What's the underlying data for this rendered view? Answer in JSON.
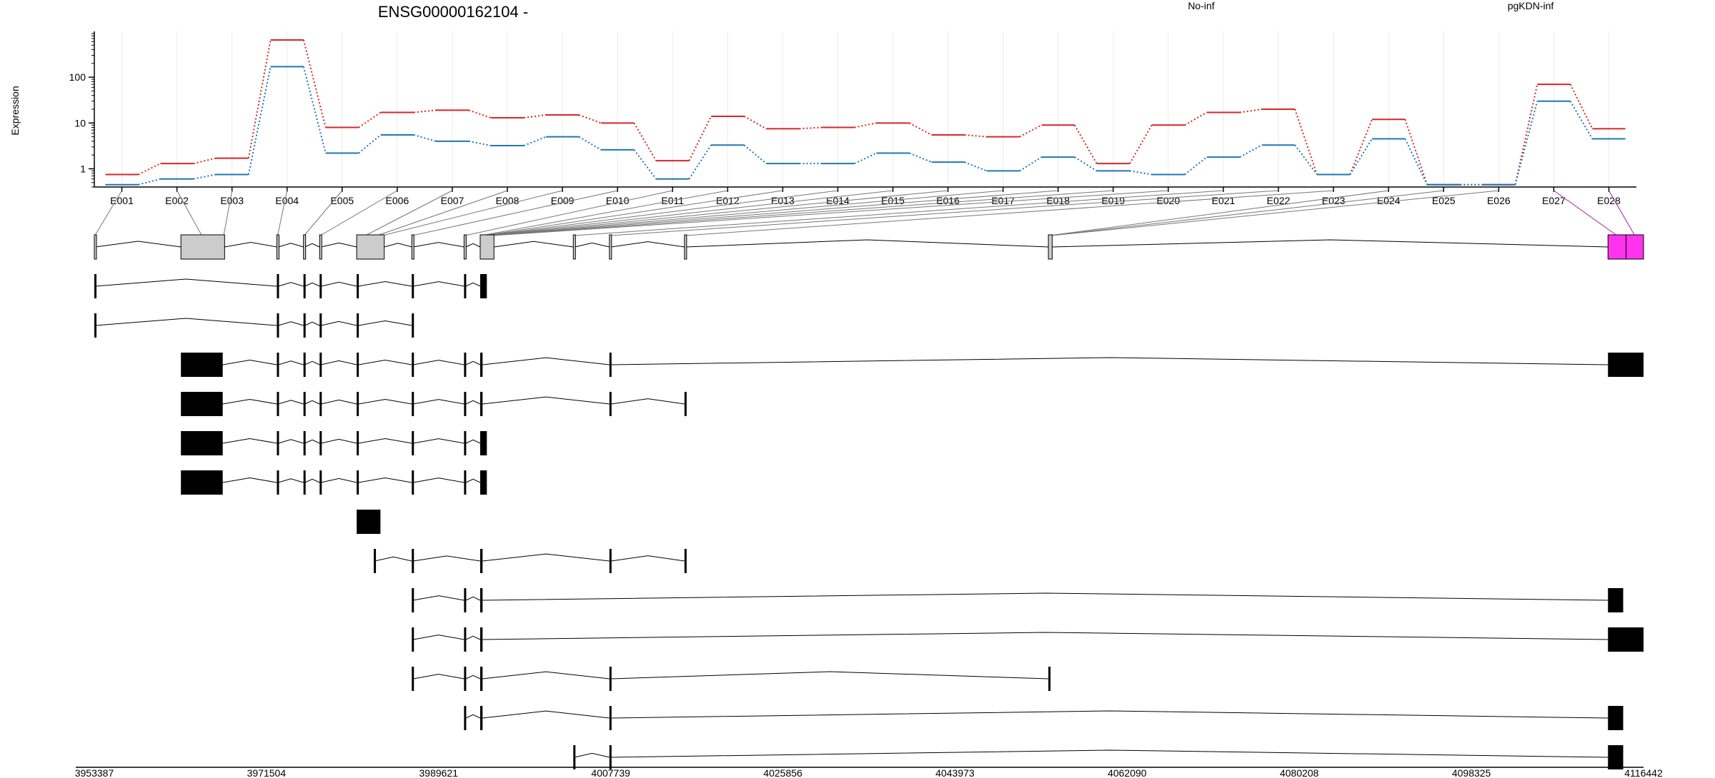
{
  "title": "ENSG00000162104 -",
  "ylabel": "Expression",
  "legend": [
    {
      "name": "No-inf",
      "color": "#d62728"
    },
    {
      "name": "pgKDN-inf",
      "color": "#1f77b4"
    }
  ],
  "chart_data": {
    "type": "line",
    "scale": "log",
    "grid": true,
    "ylim": [
      0.4,
      1000
    ],
    "yticks": [
      1,
      10,
      100
    ],
    "ytick_labels": [
      "1",
      "10",
      "100"
    ],
    "categories": [
      "E001",
      "E002",
      "E003",
      "E004",
      "E005",
      "E006",
      "E007",
      "E008",
      "E009",
      "E010",
      "E011",
      "E012",
      "E013",
      "E014",
      "E015",
      "E016",
      "E017",
      "E018",
      "E019",
      "E020",
      "E021",
      "E022",
      "E023",
      "E024",
      "E025",
      "E026",
      "E027",
      "E028"
    ],
    "series": [
      {
        "name": "No-inf",
        "values": [
          0.75,
          1.3,
          1.7,
          650,
          8,
          17,
          19,
          13,
          15,
          10,
          1.5,
          14,
          7.5,
          8,
          10,
          5.5,
          5,
          9,
          1.3,
          9,
          17,
          20,
          0.75,
          12,
          0.45,
          0.45,
          70,
          7.5
        ]
      },
      {
        "name": "pgKDN-inf",
        "values": [
          0.45,
          0.6,
          0.75,
          170,
          2.2,
          5.5,
          4,
          3.2,
          5,
          2.6,
          0.6,
          3.3,
          1.3,
          1.3,
          2.2,
          1.4,
          0.9,
          1.8,
          0.9,
          0.75,
          1.8,
          3.3,
          0.75,
          4.5,
          0.45,
          0.45,
          30,
          4.5
        ]
      }
    ]
  },
  "genomic_axis": {
    "range": [
      3953387,
      4116442
    ],
    "tick_values": [
      3953387,
      3971504,
      3989621,
      4007739,
      4025856,
      4043973,
      4062090,
      4080208,
      4098325,
      4116442
    ],
    "tick_labels": [
      "3953387",
      "3971504",
      "3989621",
      "4007739",
      "4025856",
      "4043973",
      "4062090",
      "4080208",
      "4098325",
      "4116442"
    ]
  },
  "exons": [
    {
      "id": "E001",
      "start": 3953387,
      "end": 3953500
    },
    {
      "id": "E002",
      "start": 3962500,
      "end": 3966900
    },
    {
      "id": "E003",
      "start": 3966900,
      "end": 3967100
    },
    {
      "id": "E004",
      "start": 3972600,
      "end": 3972750
    },
    {
      "id": "E005",
      "start": 3975400,
      "end": 3975550
    },
    {
      "id": "E006",
      "start": 3977100,
      "end": 3977250
    },
    {
      "id": "E007",
      "start": 3981000,
      "end": 3982800
    },
    {
      "id": "E008",
      "start": 3982800,
      "end": 3983500
    },
    {
      "id": "E009",
      "start": 3983500,
      "end": 3983900
    },
    {
      "id": "E010",
      "start": 3986800,
      "end": 3986950
    },
    {
      "id": "E011",
      "start": 3992300,
      "end": 3992500
    },
    {
      "id": "E012",
      "start": 3994000,
      "end": 3994250
    },
    {
      "id": "E013",
      "start": 3994250,
      "end": 3994400
    },
    {
      "id": "E014",
      "start": 3994400,
      "end": 3994550
    },
    {
      "id": "E015",
      "start": 3994550,
      "end": 3994700
    },
    {
      "id": "E016",
      "start": 3994700,
      "end": 3994850
    },
    {
      "id": "E017",
      "start": 3994850,
      "end": 3995000
    },
    {
      "id": "E018",
      "start": 3995000,
      "end": 3995150
    },
    {
      "id": "E019",
      "start": 3995150,
      "end": 3995300
    },
    {
      "id": "E020",
      "start": 3995300,
      "end": 3995450
    },
    {
      "id": "E021",
      "start": 4003800,
      "end": 4003950
    },
    {
      "id": "E022",
      "start": 4007600,
      "end": 4007800
    },
    {
      "id": "E023",
      "start": 4015500,
      "end": 4015650
    },
    {
      "id": "E024",
      "start": 4053800,
      "end": 4054000
    },
    {
      "id": "E025",
      "start": 4054000,
      "end": 4054100
    },
    {
      "id": "E026",
      "start": 4054100,
      "end": 4054200
    },
    {
      "id": "E027",
      "start": 4112700,
      "end": 4114600
    },
    {
      "id": "E028",
      "start": 4114600,
      "end": 4116442
    }
  ],
  "highlight_color": "#ff33ee",
  "transcripts": [
    {
      "exons": [
        [
          3953387,
          3953500
        ],
        [
          3962500,
          3967100
        ],
        [
          3972600,
          3972750
        ],
        [
          3975400,
          3975550
        ],
        [
          3977100,
          3977250
        ],
        [
          3981000,
          3983900
        ],
        [
          3986800,
          3986950
        ],
        [
          3992300,
          3992500
        ],
        [
          3994000,
          3995450
        ],
        [
          4003800,
          4003950
        ],
        [
          4007600,
          4007800
        ],
        [
          4015500,
          4015650
        ],
        [
          4053800,
          4054200
        ],
        [
          4112700,
          4114600
        ],
        [
          4114600,
          4116442
        ]
      ],
      "feature": true
    },
    {
      "exons": [
        [
          3953387,
          3953500
        ],
        [
          3972600,
          3972750
        ],
        [
          3975400,
          3975550
        ],
        [
          3977100,
          3977250
        ],
        [
          3981000,
          3981200
        ],
        [
          3986800,
          3986950
        ],
        [
          3992300,
          3992500
        ],
        [
          3994000,
          3994700
        ]
      ]
    },
    {
      "exons": [
        [
          3953387,
          3953500
        ],
        [
          3972600,
          3972750
        ],
        [
          3975400,
          3975550
        ],
        [
          3977100,
          3977250
        ],
        [
          3981000,
          3981200
        ],
        [
          3986800,
          3986950
        ]
      ]
    },
    {
      "exons": [
        [
          3962500,
          3966900
        ],
        [
          3972600,
          3972750
        ],
        [
          3975400,
          3975550
        ],
        [
          3977100,
          3977250
        ],
        [
          3981000,
          3981200
        ],
        [
          3986800,
          3986950
        ],
        [
          3992300,
          3992500
        ],
        [
          3994000,
          3994250
        ],
        [
          4007600,
          4007800
        ],
        [
          4112700,
          4114600
        ],
        [
          4114600,
          4116442
        ]
      ]
    },
    {
      "exons": [
        [
          3962500,
          3966900
        ],
        [
          3972600,
          3972750
        ],
        [
          3975400,
          3975550
        ],
        [
          3977100,
          3977250
        ],
        [
          3981000,
          3981200
        ],
        [
          3986800,
          3986950
        ],
        [
          3992300,
          3992500
        ],
        [
          3994000,
          3994250
        ],
        [
          4007600,
          4007800
        ],
        [
          4015500,
          4015650
        ]
      ]
    },
    {
      "exons": [
        [
          3962500,
          3966900
        ],
        [
          3972600,
          3972750
        ],
        [
          3975400,
          3975550
        ],
        [
          3977100,
          3977250
        ],
        [
          3981000,
          3981200
        ],
        [
          3986800,
          3986950
        ],
        [
          3992300,
          3992500
        ],
        [
          3994000,
          3994700
        ]
      ]
    },
    {
      "exons": [
        [
          3962500,
          3966900
        ],
        [
          3972600,
          3972750
        ],
        [
          3975400,
          3975550
        ],
        [
          3977100,
          3977250
        ],
        [
          3981000,
          3981200
        ],
        [
          3986800,
          3986950
        ],
        [
          3992300,
          3992500
        ],
        [
          3994000,
          3994700
        ]
      ]
    },
    {
      "exons": [
        [
          3981000,
          3983500
        ]
      ]
    },
    {
      "exons": [
        [
          3982800,
          3982900
        ],
        [
          3986800,
          3986950
        ],
        [
          3994000,
          3994250
        ],
        [
          4007600,
          4007800
        ],
        [
          4015500,
          4015650
        ]
      ]
    },
    {
      "exons": [
        [
          3986800,
          3986950
        ],
        [
          3992300,
          3992500
        ],
        [
          3994000,
          3994250
        ],
        [
          4112700,
          4114300
        ]
      ]
    },
    {
      "exons": [
        [
          3986800,
          3986950
        ],
        [
          3992300,
          3992500
        ],
        [
          3994000,
          3994250
        ],
        [
          4112700,
          4114600
        ],
        [
          4114600,
          4116442
        ]
      ]
    },
    {
      "exons": [
        [
          3986800,
          3986950
        ],
        [
          3992300,
          3992500
        ],
        [
          3994000,
          3994250
        ],
        [
          4007600,
          4007800
        ],
        [
          4053800,
          4054000
        ]
      ]
    },
    {
      "exons": [
        [
          3992300,
          3992500
        ],
        [
          3994000,
          3994250
        ],
        [
          4007600,
          4007800
        ],
        [
          4112700,
          4114300
        ]
      ]
    },
    {
      "exons": [
        [
          4003800,
          4003950
        ],
        [
          4007600,
          4007800
        ],
        [
          4112700,
          4114300
        ]
      ]
    }
  ]
}
